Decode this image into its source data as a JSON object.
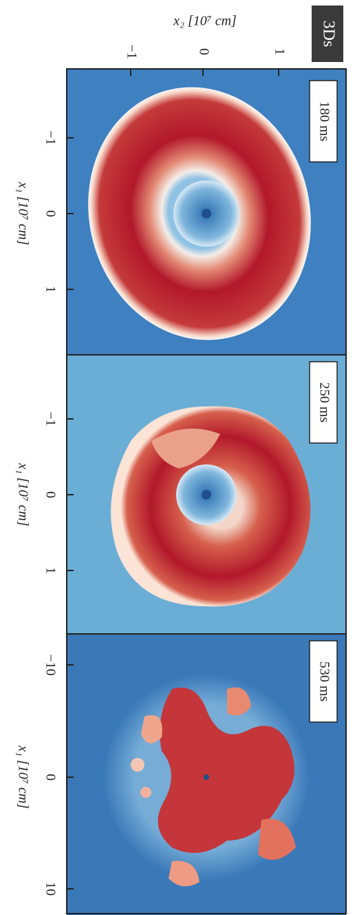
{
  "badge": "3Ds",
  "top_axis": {
    "label": "x₂ [10⁷ cm]",
    "ticks": [
      "−1",
      "0",
      "1"
    ]
  },
  "panels": [
    {
      "time": "180 ms",
      "axis_label": "x₁ [10⁷ cm]",
      "ticks": [
        "−1",
        "0",
        "1"
      ]
    },
    {
      "time": "250 ms",
      "axis_label": "x₁ [10⁷ cm]",
      "ticks": [
        "−1",
        "0",
        "1"
      ]
    },
    {
      "time": "530 ms",
      "axis_label": "x₁ [10⁷ cm]",
      "ticks": [
        "−10",
        "0",
        "10"
      ]
    }
  ]
}
